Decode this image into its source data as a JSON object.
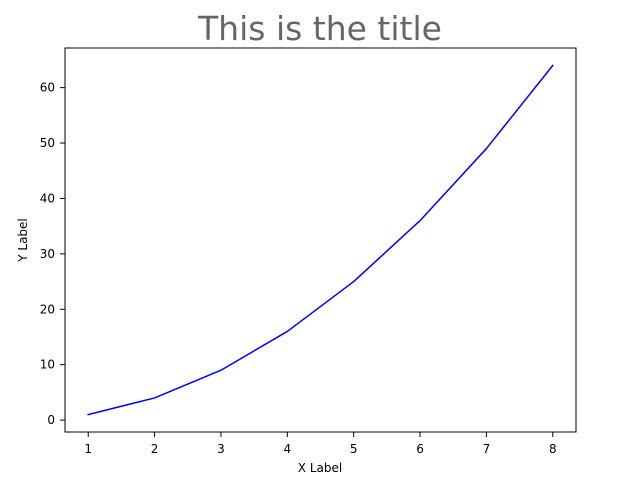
{
  "chart_data": {
    "type": "line",
    "title": "This is the title",
    "xlabel": "X Label",
    "ylabel": "Y Label",
    "xlim": [
      0.65,
      8.35
    ],
    "ylim": [
      -2.15,
      67.15
    ],
    "x_ticks": [
      1,
      2,
      3,
      4,
      5,
      6,
      7,
      8
    ],
    "y_ticks": [
      0,
      10,
      20,
      30,
      40,
      50,
      60
    ],
    "grid": false,
    "series": [
      {
        "x": [
          1,
          2,
          3,
          4,
          5,
          6,
          7,
          8
        ],
        "y": [
          1,
          4,
          9,
          16,
          25,
          36,
          49,
          64
        ],
        "color": "#0000ff"
      }
    ],
    "colors": {
      "title": "#666666",
      "axes": "#000000",
      "text": "#000000"
    }
  }
}
